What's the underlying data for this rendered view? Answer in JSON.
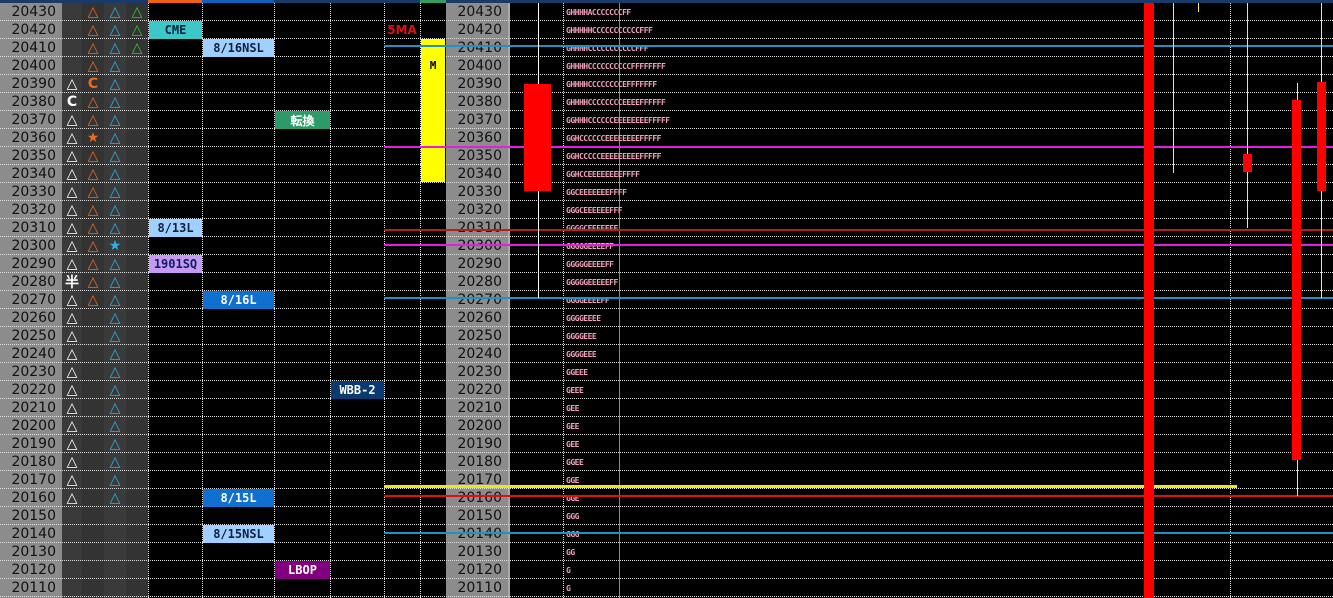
{
  "colors": {
    "white_marker": "#ffffff",
    "orange_marker": "#f06a20",
    "blue_marker": "#28b4e6",
    "green_marker": "#28d228",
    "profile_text": "#f4a0c0",
    "candle": "#ff0000"
  },
  "rows": [
    {
      "price": "20430",
      "m1": "",
      "m2": "△",
      "m3": "△",
      "m4": "△",
      "profile": "GHHHHACCCCCCCFF"
    },
    {
      "price": "20420",
      "m1": "",
      "m2": "△",
      "m3": "△",
      "m4": "△",
      "profile": "GHHHHHCCCCCCCCCCCFFF"
    },
    {
      "price": "20410",
      "m1": "",
      "m2": "△",
      "m3": "△",
      "m4": "△",
      "profile": "GHHHHCCCCCCCCCCCFFF"
    },
    {
      "price": "20400",
      "m1": "",
      "m2": "△",
      "m3": "△",
      "m4": "",
      "profile": "GHHHHCCCCCCCCCCFFFFFFFF"
    },
    {
      "price": "20390",
      "m1": "△",
      "m2": "C",
      "m3": "△",
      "m4": "",
      "profile": "GHHHHCCCCCCCCEFFFFFFF"
    },
    {
      "price": "20380",
      "m1": "C",
      "m2": "△",
      "m3": "△",
      "m4": "",
      "profile": "GHHHHCCCCCCCCEEEEFFFFFF"
    },
    {
      "price": "20370",
      "m1": "△",
      "m2": "△",
      "m3": "△",
      "m4": "",
      "profile": "GGHHHCCCCCCEEEEEEEEFFFFF"
    },
    {
      "price": "20360",
      "m1": "△",
      "m2": "★",
      "m3": "△",
      "m4": "",
      "profile": "GGHCCCCCCEEEEEEEEFFFFF"
    },
    {
      "price": "20350",
      "m1": "△",
      "m2": "△",
      "m3": "△",
      "m4": "",
      "profile": "GGHCCCCCEEEEEEEEEFFFFF"
    },
    {
      "price": "20340",
      "m1": "△",
      "m2": "△",
      "m3": "△",
      "m4": "",
      "profile": "GGHCCEEEEEEEEFFFF"
    },
    {
      "price": "20330",
      "m1": "△",
      "m2": "△",
      "m3": "△",
      "m4": "",
      "profile": "GGCEEEEEEEFFFF"
    },
    {
      "price": "20320",
      "m1": "△",
      "m2": "△",
      "m3": "△",
      "m4": "",
      "profile": "GGGCEEEEEEFFF"
    },
    {
      "price": "20310",
      "m1": "△",
      "m2": "△",
      "m3": "△",
      "m4": "",
      "profile": "GGGGCEEEEEFF"
    },
    {
      "price": "20300",
      "m1": "△",
      "m2": "△",
      "m3": "★",
      "m4": "",
      "profile": "GGGGGEEEEFF"
    },
    {
      "price": "20290",
      "m1": "△",
      "m2": "△",
      "m3": "△",
      "m4": "",
      "profile": "GGGGGEEEEFF"
    },
    {
      "price": "20280",
      "m1": "半",
      "m2": "△",
      "m3": "△",
      "m4": "",
      "profile": "GGGGGEEEEEFF"
    },
    {
      "price": "20270",
      "m1": "△",
      "m2": "△",
      "m3": "△",
      "m4": "",
      "profile": "GGGGEEEEFF"
    },
    {
      "price": "20260",
      "m1": "△",
      "m2": "",
      "m3": "△",
      "m4": "",
      "profile": "GGGGEEEE"
    },
    {
      "price": "20250",
      "m1": "△",
      "m2": "",
      "m3": "△",
      "m4": "",
      "profile": "GGGGEEE"
    },
    {
      "price": "20240",
      "m1": "△",
      "m2": "",
      "m3": "△",
      "m4": "",
      "profile": "GGGGEEE"
    },
    {
      "price": "20230",
      "m1": "△",
      "m2": "",
      "m3": "△",
      "m4": "",
      "profile": "GGEEE"
    },
    {
      "price": "20220",
      "m1": "△",
      "m2": "",
      "m3": "△",
      "m4": "",
      "profile": "GEEE"
    },
    {
      "price": "20210",
      "m1": "△",
      "m2": "",
      "m3": "△",
      "m4": "",
      "profile": "GEE"
    },
    {
      "price": "20200",
      "m1": "△",
      "m2": "",
      "m3": "△",
      "m4": "",
      "profile": "GEE"
    },
    {
      "price": "20190",
      "m1": "△",
      "m2": "",
      "m3": "△",
      "m4": "",
      "profile": "GEE"
    },
    {
      "price": "20180",
      "m1": "△",
      "m2": "",
      "m3": "△",
      "m4": "",
      "profile": "GGEE"
    },
    {
      "price": "20170",
      "m1": "△",
      "m2": "",
      "m3": "△",
      "m4": "",
      "profile": "GGE"
    },
    {
      "price": "20160",
      "m1": "△",
      "m2": "",
      "m3": "△",
      "m4": "",
      "profile": "GGE"
    },
    {
      "price": "20150",
      "m1": "",
      "m2": "",
      "m3": "",
      "m4": "",
      "profile": "GGG"
    },
    {
      "price": "20140",
      "m1": "",
      "m2": "",
      "m3": "",
      "m4": "",
      "profile": "GGG"
    },
    {
      "price": "20130",
      "m1": "",
      "m2": "",
      "m3": "",
      "m4": "",
      "profile": "GG"
    },
    {
      "price": "20120",
      "m1": "",
      "m2": "",
      "m3": "",
      "m4": "",
      "profile": "G"
    },
    {
      "price": "20110",
      "m1": "",
      "m2": "",
      "m3": "",
      "m4": "",
      "profile": "G"
    }
  ],
  "labels": [
    {
      "text": "CME",
      "price": "20420",
      "col": "c5",
      "bg": "#3cc8c8",
      "fg": "#102040"
    },
    {
      "text": "8/16NSL",
      "price": "20410",
      "col": "c6",
      "bg": "#a0d0ff",
      "fg": "#102040"
    },
    {
      "text": "転換",
      "price": "20370",
      "col": "c7",
      "bg": "#2e9a6a",
      "fg": "#ffffff"
    },
    {
      "text": "8/13L",
      "price": "20310",
      "col": "c5",
      "bg": "#a0d0ff",
      "fg": "#102040"
    },
    {
      "text": "1901SQ",
      "price": "20290",
      "col": "c5",
      "bg": "#c49af4",
      "fg": "#102060"
    },
    {
      "text": "8/16L",
      "price": "20270",
      "col": "c6",
      "bg": "#1070d0",
      "fg": "#ffffff"
    },
    {
      "text": "WBB-2",
      "price": "20220",
      "col": "c8",
      "bg": "#0a3a70",
      "fg": "#ffffff"
    },
    {
      "text": "8/15L",
      "price": "20160",
      "col": "c6",
      "bg": "#1070d0",
      "fg": "#ffffff"
    },
    {
      "text": "8/15NSL",
      "price": "20140",
      "col": "c6",
      "bg": "#a0d0ff",
      "fg": "#102040"
    },
    {
      "text": "LBOP",
      "price": "20120",
      "col": "c7",
      "bg": "#800080",
      "fg": "#ffffff"
    }
  ],
  "ma_label": {
    "text": "5MA",
    "color": "#e01010"
  },
  "m_marker": {
    "text": "M",
    "color": "#ffff00",
    "from": "20400",
    "to": "20340"
  }
}
